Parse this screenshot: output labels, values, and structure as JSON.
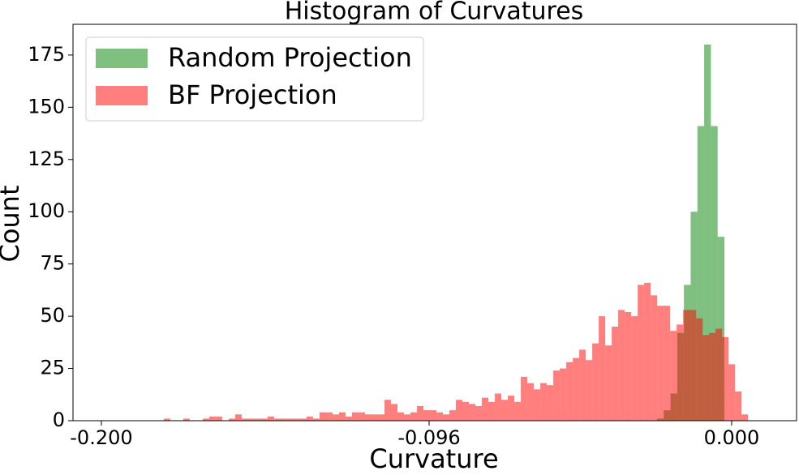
{
  "chart_data": {
    "type": "histogram",
    "title": "Histogram of Curvatures",
    "x_label": "Curvature",
    "y_label": "Count",
    "xlim": [
      -0.209,
      0.0206
    ],
    "ylim": [
      0,
      189.7
    ],
    "xticks": [
      {
        "value": -0.2,
        "label": "-0.200"
      },
      {
        "value": -0.096,
        "label": "-0.096"
      },
      {
        "value": 0,
        "label": "0.000"
      }
    ],
    "yticks": [
      0,
      25,
      50,
      75,
      100,
      125,
      150,
      175
    ],
    "legend": "upper left",
    "alpha": 0.5,
    "series": [
      {
        "name": "Random Projection",
        "color": "green",
        "bins": [
          -0.0237,
          -0.02156,
          -0.01942,
          -0.01728,
          -0.01514,
          -0.013,
          -0.01086,
          -0.00872,
          -0.00658,
          -0.00444,
          -0.0023
        ],
        "values": [
          1,
          5,
          13,
          42,
          65,
          100,
          141,
          180,
          141,
          88
        ]
      },
      {
        "name": "BF Projection",
        "color": "red",
        "bins": [
          -0.1802,
          -0.17814,
          -0.17608,
          -0.17402,
          -0.17196,
          -0.1699,
          -0.16784,
          -0.16578,
          -0.16372,
          -0.16166,
          -0.1596,
          -0.15754,
          -0.15548,
          -0.15342,
          -0.15136,
          -0.1493,
          -0.14724,
          -0.14518,
          -0.14312,
          -0.14106,
          -0.139,
          -0.13694,
          -0.13488,
          -0.13282,
          -0.13076,
          -0.1287,
          -0.12664,
          -0.12458,
          -0.12252,
          -0.12046,
          -0.1184,
          -0.11634,
          -0.11428,
          -0.11222,
          -0.11016,
          -0.1081,
          -0.10604,
          -0.10398,
          -0.10192,
          -0.09986,
          -0.0978,
          -0.09574,
          -0.09368,
          -0.09162,
          -0.08956,
          -0.0875,
          -0.08544,
          -0.08338,
          -0.08132,
          -0.07926,
          -0.0772,
          -0.07514,
          -0.07308,
          -0.07102,
          -0.06896,
          -0.0669,
          -0.06484,
          -0.06278,
          -0.06072,
          -0.05866,
          -0.0566,
          -0.05454,
          -0.05248,
          -0.05042,
          -0.04836,
          -0.0463,
          -0.04424,
          -0.04218,
          -0.04012,
          -0.03806,
          -0.036,
          -0.03394,
          -0.03188,
          -0.02982,
          -0.02776,
          -0.0257,
          -0.02364,
          -0.02158,
          -0.01952,
          -0.01746,
          -0.0154,
          -0.01334,
          -0.01128,
          -0.00922,
          -0.00716,
          -0.0051,
          -0.00304,
          -0.00098,
          0.00108,
          0.00314,
          0.0052
        ],
        "values": [
          1,
          0,
          0,
          1,
          0,
          0,
          1,
          2,
          2,
          0,
          1,
          3,
          1,
          1,
          1,
          1,
          2,
          1,
          1,
          1,
          1,
          1,
          2,
          1,
          4,
          4,
          3,
          4,
          2,
          4,
          4,
          3,
          3,
          3,
          10,
          8,
          4,
          3,
          4,
          7,
          5,
          5,
          4,
          3,
          5,
          10,
          9,
          8,
          7,
          11,
          9,
          13,
          10,
          12,
          9,
          21,
          18,
          15,
          18,
          17,
          24,
          25,
          28,
          30,
          34,
          29,
          37,
          50,
          36,
          45,
          53,
          52,
          50,
          65,
          66,
          60,
          55,
          55,
          43,
          46,
          53,
          53,
          49,
          41,
          42,
          44,
          40,
          27,
          14,
          3
        ]
      }
    ]
  }
}
